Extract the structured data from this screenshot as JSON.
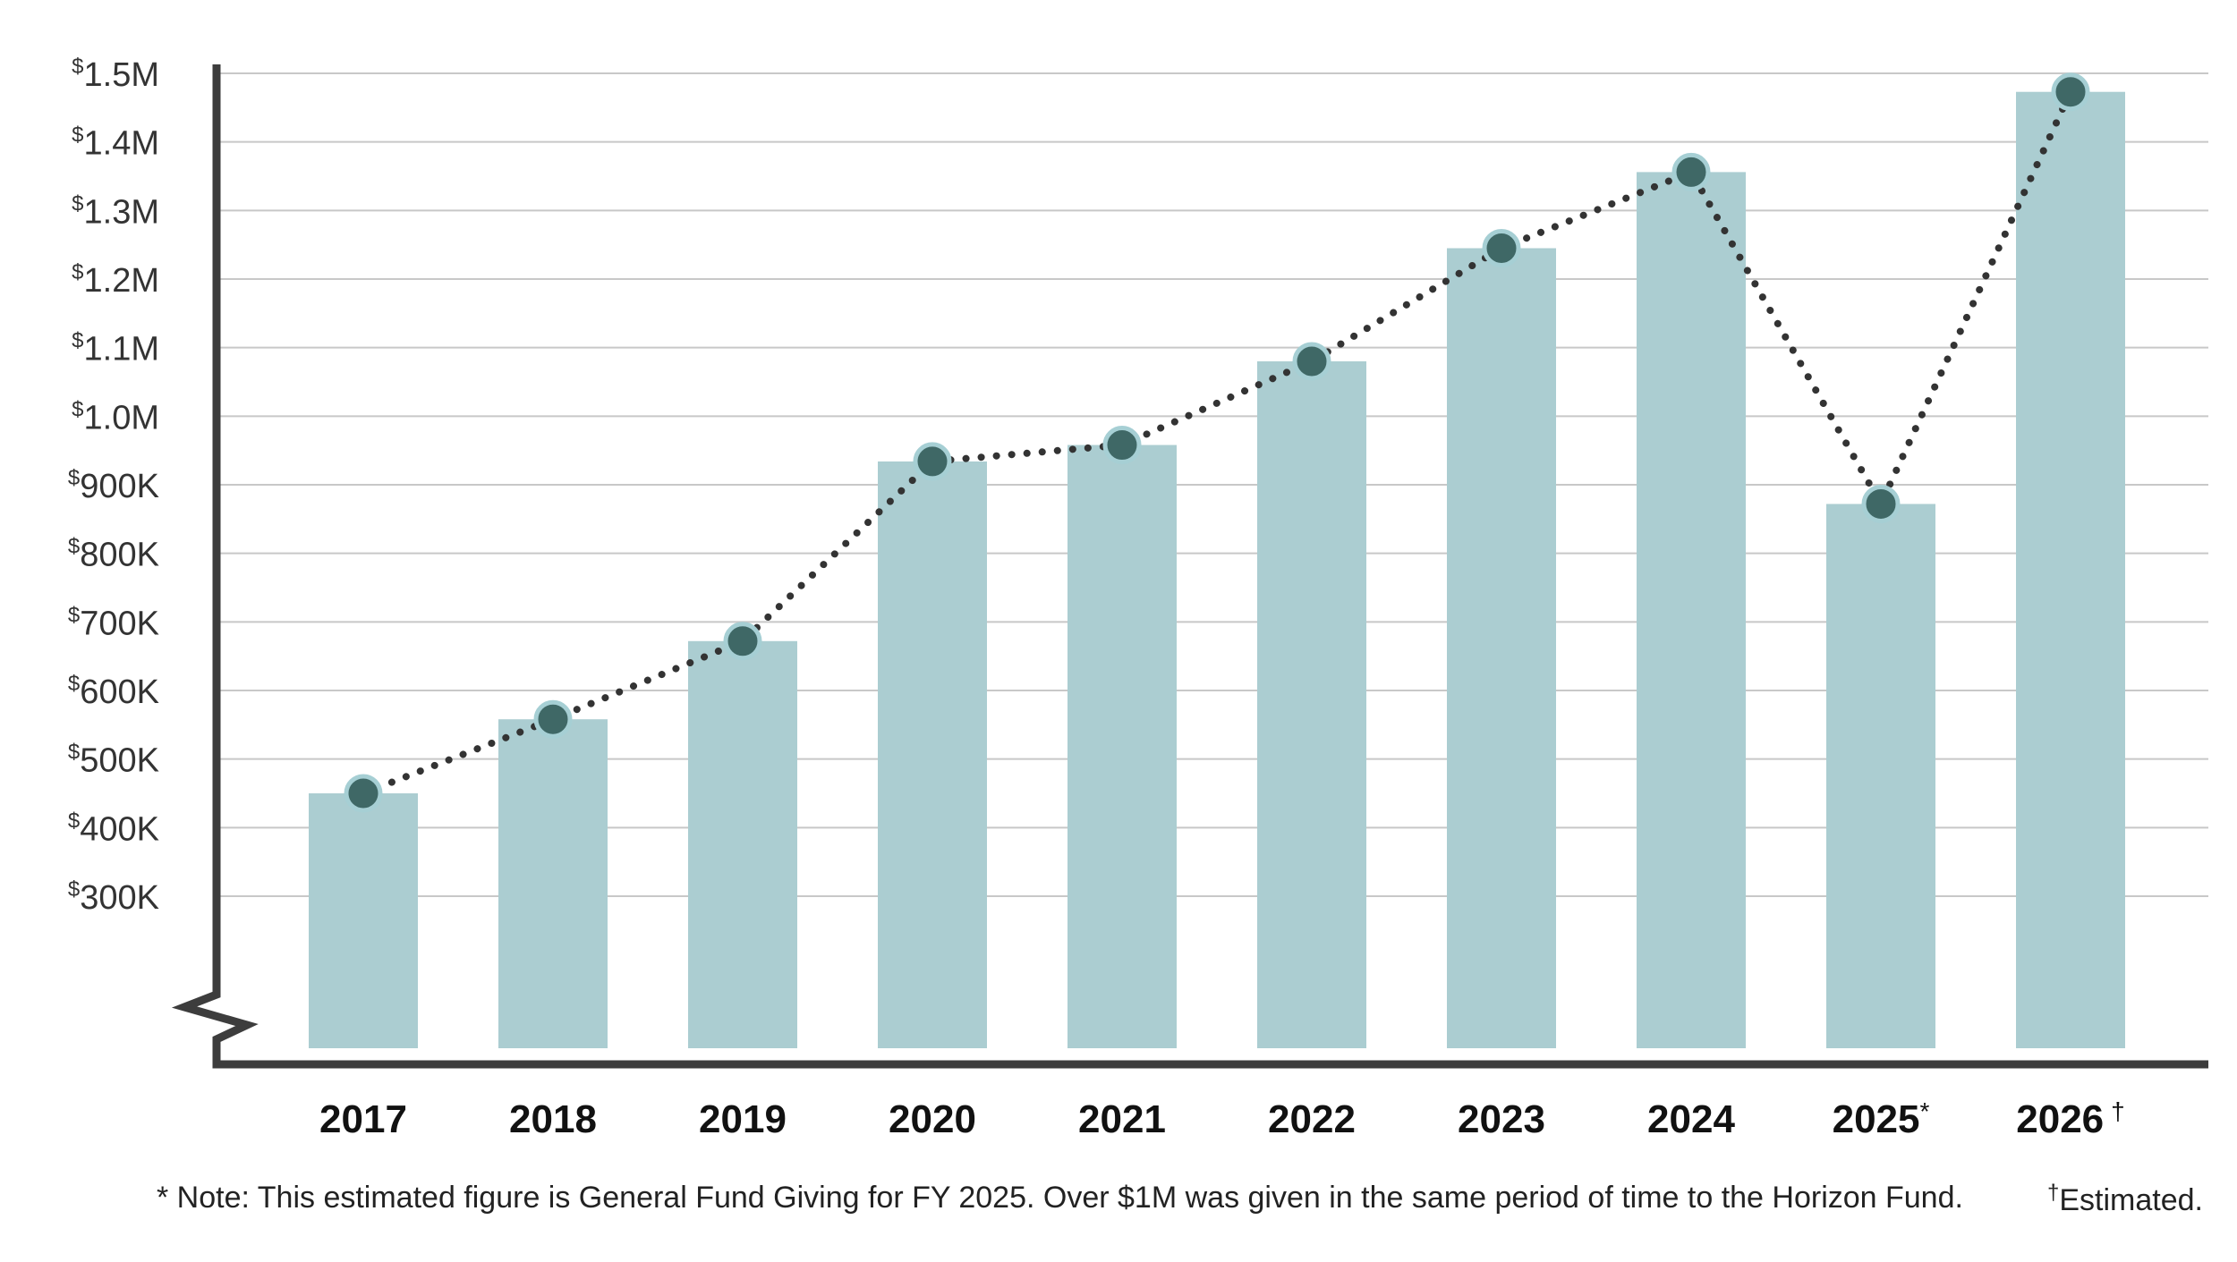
{
  "colors": {
    "bar": "#abcdd1",
    "marker_fill": "#3f6866",
    "marker_ring": "#a6cfd4",
    "line": "#333333",
    "grid": "#c8c8c8",
    "axis": "#3d3d3d"
  },
  "chart_data": {
    "type": "bar",
    "categories": [
      "2017",
      "2018",
      "2019",
      "2020",
      "2021",
      "2022",
      "2023",
      "2024",
      "2025",
      "2026"
    ],
    "category_marks": [
      "",
      "",
      "",
      "",
      "",
      "",
      "",
      "",
      "*",
      "†"
    ],
    "values": [
      450000,
      558000,
      672000,
      934000,
      958000,
      1080000,
      1245000,
      1356000,
      872000,
      1473000
    ],
    "overlay_line": {
      "style": "dotted",
      "markers": "circle",
      "values": [
        450000,
        558000,
        672000,
        934000,
        958000,
        1080000,
        1245000,
        1356000,
        872000,
        1473000
      ]
    },
    "y_ticks": [
      {
        "value": 300000,
        "prefix": "$",
        "label": "300K"
      },
      {
        "value": 400000,
        "prefix": "$",
        "label": "400K"
      },
      {
        "value": 500000,
        "prefix": "$",
        "label": "500K"
      },
      {
        "value": 600000,
        "prefix": "$",
        "label": "600K"
      },
      {
        "value": 700000,
        "prefix": "$",
        "label": "700K"
      },
      {
        "value": 800000,
        "prefix": "$",
        "label": "800K"
      },
      {
        "value": 900000,
        "prefix": "$",
        "label": "900K"
      },
      {
        "value": 1000000,
        "prefix": "$",
        "label": "1.0M"
      },
      {
        "value": 1100000,
        "prefix": "$",
        "label": "1.1M"
      },
      {
        "value": 1200000,
        "prefix": "$",
        "label": "1.2M"
      },
      {
        "value": 1300000,
        "prefix": "$",
        "label": "1.3M"
      },
      {
        "value": 1400000,
        "prefix": "$",
        "label": "1.4M"
      },
      {
        "value": 1500000,
        "prefix": "$",
        "label": "1.5M"
      }
    ],
    "ylim": [
      0,
      1500000
    ],
    "y_axis_break": true,
    "grid": true,
    "title": "",
    "xlabel": "",
    "ylabel": ""
  },
  "footnotes": {
    "main": "* Note: This estimated figure is General Fund Giving for FY 2025. Over $1M was given in the same period of time to the Horizon Fund.",
    "dagger_mark": "†",
    "dagger_text": "Estimated."
  }
}
